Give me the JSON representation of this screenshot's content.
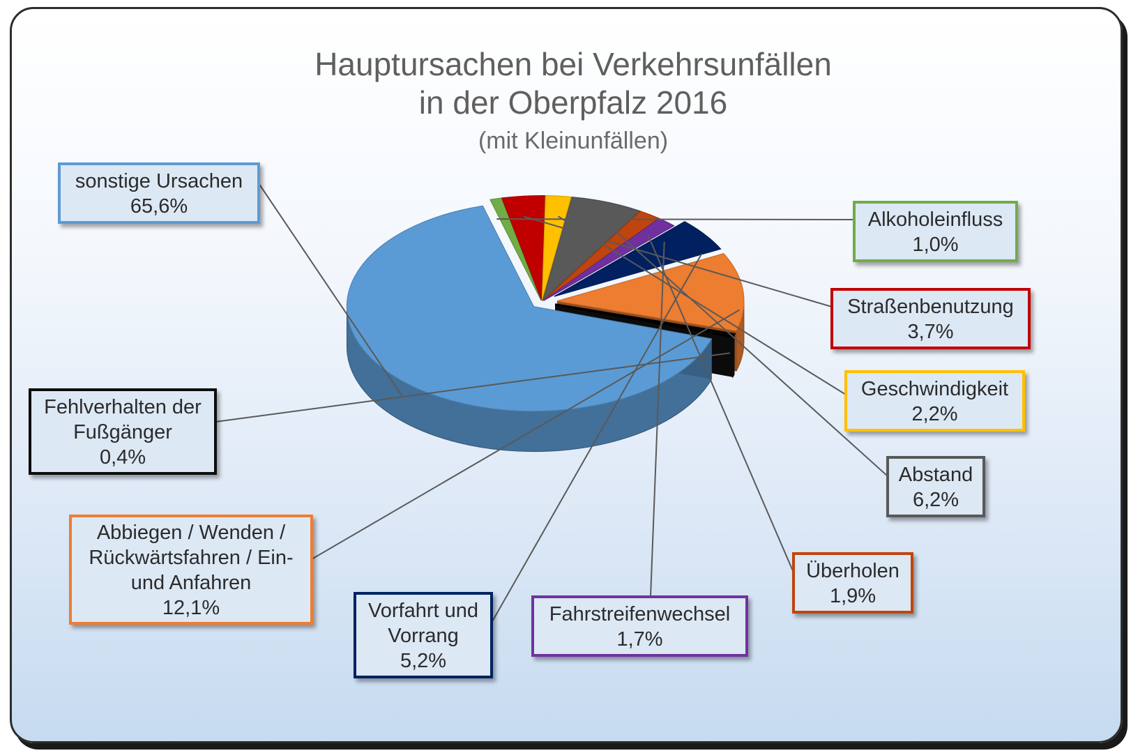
{
  "chart_data": {
    "type": "pie",
    "title": "Hauptursachen bei Verkehrsunfällen",
    "title_line2": "in der Oberpfalz 2016",
    "subtitle": "(mit Kleinunfällen)",
    "style": "3d-exploded",
    "slices": [
      {
        "key": "sonstige",
        "label": [
          "sonstige Ursachen"
        ],
        "value": 65.6,
        "value_text": "65,6%",
        "color": "#5b9bd5"
      },
      {
        "key": "alkohol",
        "label": [
          "Alkoholeinfluss"
        ],
        "value": 1.0,
        "value_text": "1,0%",
        "color": "#70ad47"
      },
      {
        "key": "strasse",
        "label": [
          "Straßenbenutzung"
        ],
        "value": 3.7,
        "value_text": "3,7%",
        "color": "#c00000"
      },
      {
        "key": "geschw",
        "label": [
          "Geschwindigkeit"
        ],
        "value": 2.2,
        "value_text": "2,2%",
        "color": "#ffc000"
      },
      {
        "key": "abstand",
        "label": [
          "Abstand"
        ],
        "value": 6.2,
        "value_text": "6,2%",
        "color": "#595959"
      },
      {
        "key": "ueberholen",
        "label": [
          "Überholen"
        ],
        "value": 1.9,
        "value_text": "1,9%",
        "color": "#c0440d"
      },
      {
        "key": "fahrstreifen",
        "label": [
          "Fahrstreifenwechsel"
        ],
        "value": 1.7,
        "value_text": "1,7%",
        "color": "#7030a0"
      },
      {
        "key": "vorfahrt",
        "label": [
          "Vorfahrt und",
          "Vorrang"
        ],
        "value": 5.2,
        "value_text": "5,2%",
        "color": "#002060"
      },
      {
        "key": "abbiegen",
        "label": [
          "Abbiegen / Wenden /",
          "Rückwärtsfahren / Ein-",
          "und Anfahren"
        ],
        "value": 12.1,
        "value_text": "12,1%",
        "color": "#ed7d31"
      },
      {
        "key": "fussgaenger",
        "label": [
          "Fehlverhalten der",
          "Fußgänger"
        ],
        "value": 0.4,
        "value_text": "0,4%",
        "color": "#111111"
      }
    ]
  }
}
